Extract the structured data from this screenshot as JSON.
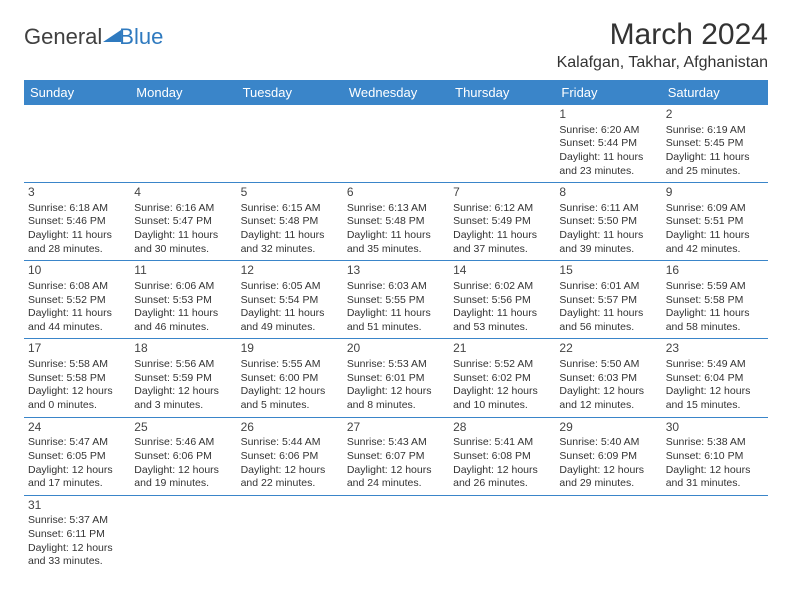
{
  "logo": {
    "part1": "General",
    "part2": "Blue"
  },
  "title": "March 2024",
  "location": "Kalafgan, Takhar, Afghanistan",
  "headers": [
    "Sunday",
    "Monday",
    "Tuesday",
    "Wednesday",
    "Thursday",
    "Friday",
    "Saturday"
  ],
  "colors": {
    "header_bg": "#3a85c9",
    "header_fg": "#ffffff",
    "border": "#3a85c9",
    "logo_blue": "#2f7abf",
    "text": "#333333",
    "background": "#ffffff"
  },
  "weeks": [
    [
      null,
      null,
      null,
      null,
      null,
      {
        "n": "1",
        "sr": "Sunrise: 6:20 AM",
        "ss": "Sunset: 5:44 PM",
        "d1": "Daylight: 11 hours",
        "d2": "and 23 minutes."
      },
      {
        "n": "2",
        "sr": "Sunrise: 6:19 AM",
        "ss": "Sunset: 5:45 PM",
        "d1": "Daylight: 11 hours",
        "d2": "and 25 minutes."
      }
    ],
    [
      {
        "n": "3",
        "sr": "Sunrise: 6:18 AM",
        "ss": "Sunset: 5:46 PM",
        "d1": "Daylight: 11 hours",
        "d2": "and 28 minutes."
      },
      {
        "n": "4",
        "sr": "Sunrise: 6:16 AM",
        "ss": "Sunset: 5:47 PM",
        "d1": "Daylight: 11 hours",
        "d2": "and 30 minutes."
      },
      {
        "n": "5",
        "sr": "Sunrise: 6:15 AM",
        "ss": "Sunset: 5:48 PM",
        "d1": "Daylight: 11 hours",
        "d2": "and 32 minutes."
      },
      {
        "n": "6",
        "sr": "Sunrise: 6:13 AM",
        "ss": "Sunset: 5:48 PM",
        "d1": "Daylight: 11 hours",
        "d2": "and 35 minutes."
      },
      {
        "n": "7",
        "sr": "Sunrise: 6:12 AM",
        "ss": "Sunset: 5:49 PM",
        "d1": "Daylight: 11 hours",
        "d2": "and 37 minutes."
      },
      {
        "n": "8",
        "sr": "Sunrise: 6:11 AM",
        "ss": "Sunset: 5:50 PM",
        "d1": "Daylight: 11 hours",
        "d2": "and 39 minutes."
      },
      {
        "n": "9",
        "sr": "Sunrise: 6:09 AM",
        "ss": "Sunset: 5:51 PM",
        "d1": "Daylight: 11 hours",
        "d2": "and 42 minutes."
      }
    ],
    [
      {
        "n": "10",
        "sr": "Sunrise: 6:08 AM",
        "ss": "Sunset: 5:52 PM",
        "d1": "Daylight: 11 hours",
        "d2": "and 44 minutes."
      },
      {
        "n": "11",
        "sr": "Sunrise: 6:06 AM",
        "ss": "Sunset: 5:53 PM",
        "d1": "Daylight: 11 hours",
        "d2": "and 46 minutes."
      },
      {
        "n": "12",
        "sr": "Sunrise: 6:05 AM",
        "ss": "Sunset: 5:54 PM",
        "d1": "Daylight: 11 hours",
        "d2": "and 49 minutes."
      },
      {
        "n": "13",
        "sr": "Sunrise: 6:03 AM",
        "ss": "Sunset: 5:55 PM",
        "d1": "Daylight: 11 hours",
        "d2": "and 51 minutes."
      },
      {
        "n": "14",
        "sr": "Sunrise: 6:02 AM",
        "ss": "Sunset: 5:56 PM",
        "d1": "Daylight: 11 hours",
        "d2": "and 53 minutes."
      },
      {
        "n": "15",
        "sr": "Sunrise: 6:01 AM",
        "ss": "Sunset: 5:57 PM",
        "d1": "Daylight: 11 hours",
        "d2": "and 56 minutes."
      },
      {
        "n": "16",
        "sr": "Sunrise: 5:59 AM",
        "ss": "Sunset: 5:58 PM",
        "d1": "Daylight: 11 hours",
        "d2": "and 58 minutes."
      }
    ],
    [
      {
        "n": "17",
        "sr": "Sunrise: 5:58 AM",
        "ss": "Sunset: 5:58 PM",
        "d1": "Daylight: 12 hours",
        "d2": "and 0 minutes."
      },
      {
        "n": "18",
        "sr": "Sunrise: 5:56 AM",
        "ss": "Sunset: 5:59 PM",
        "d1": "Daylight: 12 hours",
        "d2": "and 3 minutes."
      },
      {
        "n": "19",
        "sr": "Sunrise: 5:55 AM",
        "ss": "Sunset: 6:00 PM",
        "d1": "Daylight: 12 hours",
        "d2": "and 5 minutes."
      },
      {
        "n": "20",
        "sr": "Sunrise: 5:53 AM",
        "ss": "Sunset: 6:01 PM",
        "d1": "Daylight: 12 hours",
        "d2": "and 8 minutes."
      },
      {
        "n": "21",
        "sr": "Sunrise: 5:52 AM",
        "ss": "Sunset: 6:02 PM",
        "d1": "Daylight: 12 hours",
        "d2": "and 10 minutes."
      },
      {
        "n": "22",
        "sr": "Sunrise: 5:50 AM",
        "ss": "Sunset: 6:03 PM",
        "d1": "Daylight: 12 hours",
        "d2": "and 12 minutes."
      },
      {
        "n": "23",
        "sr": "Sunrise: 5:49 AM",
        "ss": "Sunset: 6:04 PM",
        "d1": "Daylight: 12 hours",
        "d2": "and 15 minutes."
      }
    ],
    [
      {
        "n": "24",
        "sr": "Sunrise: 5:47 AM",
        "ss": "Sunset: 6:05 PM",
        "d1": "Daylight: 12 hours",
        "d2": "and 17 minutes."
      },
      {
        "n": "25",
        "sr": "Sunrise: 5:46 AM",
        "ss": "Sunset: 6:06 PM",
        "d1": "Daylight: 12 hours",
        "d2": "and 19 minutes."
      },
      {
        "n": "26",
        "sr": "Sunrise: 5:44 AM",
        "ss": "Sunset: 6:06 PM",
        "d1": "Daylight: 12 hours",
        "d2": "and 22 minutes."
      },
      {
        "n": "27",
        "sr": "Sunrise: 5:43 AM",
        "ss": "Sunset: 6:07 PM",
        "d1": "Daylight: 12 hours",
        "d2": "and 24 minutes."
      },
      {
        "n": "28",
        "sr": "Sunrise: 5:41 AM",
        "ss": "Sunset: 6:08 PM",
        "d1": "Daylight: 12 hours",
        "d2": "and 26 minutes."
      },
      {
        "n": "29",
        "sr": "Sunrise: 5:40 AM",
        "ss": "Sunset: 6:09 PM",
        "d1": "Daylight: 12 hours",
        "d2": "and 29 minutes."
      },
      {
        "n": "30",
        "sr": "Sunrise: 5:38 AM",
        "ss": "Sunset: 6:10 PM",
        "d1": "Daylight: 12 hours",
        "d2": "and 31 minutes."
      }
    ],
    [
      {
        "n": "31",
        "sr": "Sunrise: 5:37 AM",
        "ss": "Sunset: 6:11 PM",
        "d1": "Daylight: 12 hours",
        "d2": "and 33 minutes."
      },
      null,
      null,
      null,
      null,
      null,
      null
    ]
  ]
}
